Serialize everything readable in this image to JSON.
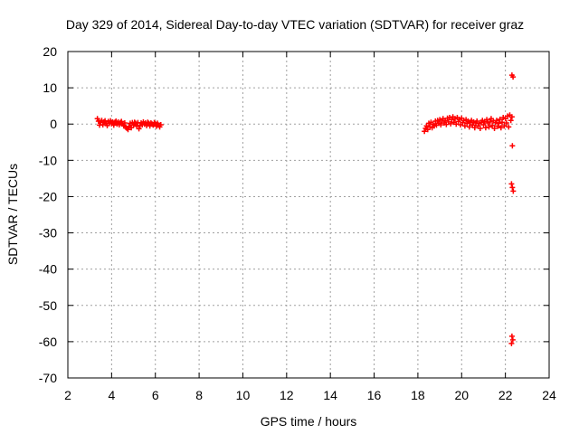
{
  "chart_data": {
    "type": "scatter",
    "title": "Day 329 of 2014, Sidereal Day-to-day VTEC variation (SDTVAR) for receiver graz",
    "xlabel": "GPS time / hours",
    "ylabel": "SDTVAR / TECUs",
    "xlim": [
      2,
      24
    ],
    "ylim": [
      -70,
      20
    ],
    "xticks": [
      "2",
      "4",
      "6",
      "8",
      "10",
      "12",
      "14",
      "16",
      "18",
      "20",
      "22",
      "24"
    ],
    "yticks": [
      "20",
      "10",
      "0",
      "-10",
      "-20",
      "-30",
      "-40",
      "-50",
      "-60",
      "-70"
    ],
    "grid": true,
    "marker": "plus",
    "series": [
      {
        "color": "#ff0000",
        "points": [
          [
            3.35,
            1.5
          ],
          [
            3.4,
            0.8
          ],
          [
            3.45,
            -0.3
          ],
          [
            3.5,
            0.5
          ],
          [
            3.55,
            1.0
          ],
          [
            3.6,
            -0.2
          ],
          [
            3.65,
            0.6
          ],
          [
            3.7,
            0.9
          ],
          [
            3.75,
            0.2
          ],
          [
            3.8,
            -0.4
          ],
          [
            3.85,
            0.7
          ],
          [
            3.9,
            0.3
          ],
          [
            3.95,
            0.9
          ],
          [
            4.0,
            0.1
          ],
          [
            4.05,
            0.6
          ],
          [
            4.1,
            -0.3
          ],
          [
            4.15,
            0.5
          ],
          [
            4.2,
            0.8
          ],
          [
            4.25,
            0.0
          ],
          [
            4.3,
            0.6
          ],
          [
            4.35,
            -0.2
          ],
          [
            4.4,
            0.4
          ],
          [
            4.45,
            0.7
          ],
          [
            4.5,
            0.1
          ],
          [
            4.55,
            -0.5
          ],
          [
            4.6,
            0.3
          ],
          [
            4.65,
            -0.8
          ],
          [
            4.7,
            -1.2
          ],
          [
            4.75,
            -1.5
          ],
          [
            4.8,
            -0.6
          ],
          [
            4.85,
            0.2
          ],
          [
            4.9,
            -1.0
          ],
          [
            4.95,
            0.4
          ],
          [
            5.0,
            -0.3
          ],
          [
            5.05,
            0.5
          ],
          [
            5.1,
            0.2
          ],
          [
            5.15,
            -0.6
          ],
          [
            5.2,
            0.4
          ],
          [
            5.25,
            -1.3
          ],
          [
            5.3,
            -0.4
          ],
          [
            5.35,
            0.3
          ],
          [
            5.4,
            -0.2
          ],
          [
            5.45,
            0.6
          ],
          [
            5.5,
            0.0
          ],
          [
            5.55,
            0.3
          ],
          [
            5.6,
            -0.4
          ],
          [
            5.65,
            0.5
          ],
          [
            5.7,
            0.2
          ],
          [
            5.75,
            -0.5
          ],
          [
            5.8,
            0.3
          ],
          [
            5.85,
            0.0
          ],
          [
            5.9,
            -0.3
          ],
          [
            5.95,
            0.4
          ],
          [
            6.0,
            0.1
          ],
          [
            6.05,
            -0.6
          ],
          [
            6.1,
            0.2
          ],
          [
            6.15,
            -0.3
          ],
          [
            6.2,
            -0.8
          ],
          [
            6.25,
            -0.2
          ],
          [
            18.3,
            -2.0
          ],
          [
            18.35,
            -1.2
          ],
          [
            18.4,
            -0.5
          ],
          [
            18.45,
            -1.5
          ],
          [
            18.5,
            0.2
          ],
          [
            18.55,
            -0.8
          ],
          [
            18.6,
            0.5
          ],
          [
            18.65,
            -1.0
          ],
          [
            18.7,
            0.0
          ],
          [
            18.75,
            -0.5
          ],
          [
            18.8,
            0.8
          ],
          [
            18.85,
            -0.3
          ],
          [
            18.9,
            1.0
          ],
          [
            18.95,
            0.2
          ],
          [
            19.0,
            1.2
          ],
          [
            19.05,
            -0.2
          ],
          [
            19.1,
            0.8
          ],
          [
            19.15,
            1.5
          ],
          [
            19.2,
            0.3
          ],
          [
            19.25,
            1.0
          ],
          [
            19.3,
            -0.1
          ],
          [
            19.35,
            1.6
          ],
          [
            19.4,
            0.6
          ],
          [
            19.45,
            1.8
          ],
          [
            19.5,
            0.1
          ],
          [
            19.55,
            1.2
          ],
          [
            19.6,
            2.0
          ],
          [
            19.65,
            0.5
          ],
          [
            19.7,
            1.5
          ],
          [
            19.75,
            0.0
          ],
          [
            19.8,
            1.8
          ],
          [
            19.85,
            0.7
          ],
          [
            19.9,
            1.3
          ],
          [
            19.95,
            -0.2
          ],
          [
            20.0,
            1.6
          ],
          [
            20.05,
            0.4
          ],
          [
            20.1,
            1.0
          ],
          [
            20.15,
            -0.5
          ],
          [
            20.2,
            1.2
          ],
          [
            20.25,
            0.2
          ],
          [
            20.3,
            0.8
          ],
          [
            20.35,
            -0.8
          ],
          [
            20.4,
            0.5
          ],
          [
            20.45,
            1.0
          ],
          [
            20.5,
            -0.3
          ],
          [
            20.55,
            0.6
          ],
          [
            20.6,
            -1.0
          ],
          [
            20.65,
            0.3
          ],
          [
            20.7,
            0.8
          ],
          [
            20.75,
            -0.5
          ],
          [
            20.8,
            0.2
          ],
          [
            20.85,
            -1.2
          ],
          [
            20.9,
            0.5
          ],
          [
            20.95,
            1.0
          ],
          [
            21.0,
            -0.2
          ],
          [
            21.05,
            0.7
          ],
          [
            21.1,
            -1.0
          ],
          [
            21.15,
            1.2
          ],
          [
            21.2,
            0.3
          ],
          [
            21.25,
            -0.8
          ],
          [
            21.3,
            0.6
          ],
          [
            21.35,
            1.5
          ],
          [
            21.4,
            -0.4
          ],
          [
            21.45,
            0.9
          ],
          [
            21.5,
            -1.2
          ],
          [
            21.55,
            0.4
          ],
          [
            21.6,
            1.0
          ],
          [
            21.65,
            -0.6
          ],
          [
            21.7,
            0.2
          ],
          [
            21.75,
            1.3
          ],
          [
            21.8,
            -1.0
          ],
          [
            21.85,
            0.5
          ],
          [
            21.9,
            1.8
          ],
          [
            21.95,
            -0.5
          ],
          [
            22.0,
            1.5
          ],
          [
            22.05,
            0.3
          ],
          [
            22.1,
            2.2
          ],
          [
            22.15,
            -0.8
          ],
          [
            22.2,
            2.5
          ],
          [
            22.25,
            1.0
          ],
          [
            22.3,
            2.0
          ],
          [
            22.3,
            13.5
          ],
          [
            22.35,
            13.0
          ],
          [
            22.32,
            -6.0
          ],
          [
            22.28,
            -16.5
          ],
          [
            22.32,
            -17.5
          ],
          [
            22.36,
            -18.5
          ],
          [
            22.3,
            -58.5
          ],
          [
            22.34,
            -59.5
          ],
          [
            22.28,
            -60.5
          ]
        ]
      }
    ]
  }
}
